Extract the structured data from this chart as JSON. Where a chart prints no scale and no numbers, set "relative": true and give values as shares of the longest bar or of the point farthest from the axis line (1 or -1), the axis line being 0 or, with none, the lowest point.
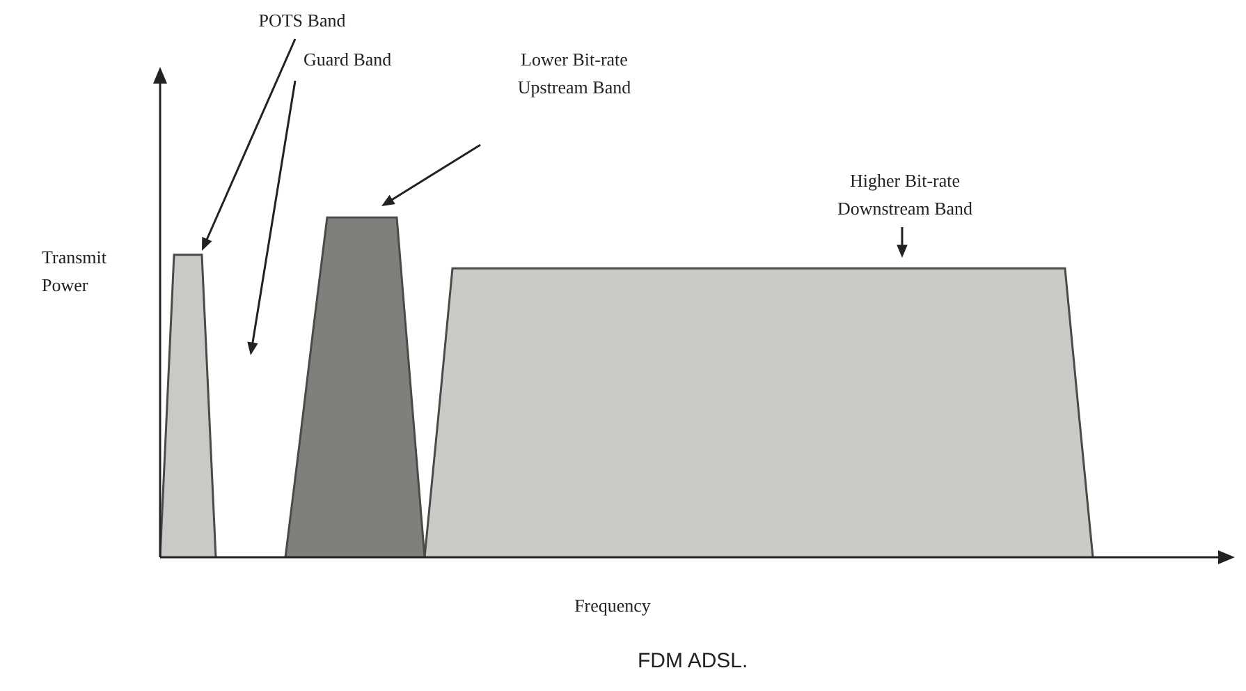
{
  "chart_data": {
    "type": "area",
    "relative": true,
    "marker": "none",
    "xlabel": "Frequency",
    "ylabel": "Transmit Power",
    "categories": [
      null,
      null,
      null,
      null,
      null,
      null,
      null,
      null,
      null,
      null,
      null,
      null,
      null,
      null,
      null,
      null,
      null,
      null,
      null,
      null,
      null,
      null,
      null,
      null,
      null,
      null,
      null,
      null,
      null,
      null,
      null,
      null,
      null,
      null,
      null,
      null,
      null,
      null,
      null,
      null,
      null,
      null,
      null,
      null,
      null,
      null,
      null,
      null,
      null,
      null,
      null,
      null,
      null,
      null,
      null,
      null,
      null,
      null,
      null,
      null,
      null,
      null,
      null,
      null,
      null,
      null,
      null,
      null,
      null,
      null,
      null,
      null,
      null,
      null,
      null
    ],
    "series": [
      {
        "color": "#c8cac5",
        "values": [
          0,
          0.89,
          0.89,
          0.89,
          0,
          null,
          null,
          null,
          null,
          null,
          null,
          null,
          null,
          null,
          null,
          null,
          null,
          null,
          null,
          null,
          null,
          null,
          null,
          null,
          null,
          null,
          null,
          null,
          null,
          null,
          null,
          null,
          null,
          null,
          null,
          null,
          null,
          null,
          null,
          null,
          null,
          null,
          null,
          null,
          null,
          null,
          null,
          null,
          null,
          null,
          null,
          null,
          null,
          null,
          null,
          null,
          null,
          null,
          null,
          null,
          null,
          null,
          null,
          null,
          null,
          null,
          null,
          null,
          null,
          null,
          null,
          null,
          null,
          null,
          null
        ]
      },
      {
        "color": "#7e807c",
        "values": [
          null,
          null,
          null,
          null,
          null,
          null,
          null,
          null,
          null,
          0,
          0.33,
          0.67,
          1,
          1,
          1,
          1,
          1,
          1,
          0.5,
          0,
          null,
          null,
          null,
          null,
          null,
          null,
          null,
          null,
          null,
          null,
          null,
          null,
          null,
          null,
          null,
          null,
          null,
          null,
          null,
          null,
          null,
          null,
          null,
          null,
          null,
          null,
          null,
          null,
          null,
          null,
          null,
          null,
          null,
          null,
          null,
          null,
          null,
          null,
          null,
          null,
          null,
          null,
          null,
          null,
          null,
          null,
          null,
          null,
          null,
          null,
          null,
          null,
          null,
          null,
          null
        ]
      },
      {
        "color": "#cacbc6",
        "values": [
          null,
          null,
          null,
          null,
          null,
          null,
          null,
          null,
          null,
          null,
          null,
          null,
          null,
          null,
          null,
          null,
          null,
          null,
          null,
          0,
          0.42,
          0.85,
          0.85,
          0.85,
          0.85,
          0.85,
          0.85,
          0.85,
          0.85,
          0.85,
          0.85,
          0.85,
          0.85,
          0.85,
          0.85,
          0.85,
          0.85,
          0.85,
          0.85,
          0.85,
          0.85,
          0.85,
          0.85,
          0.85,
          0.85,
          0.85,
          0.85,
          0.85,
          0.85,
          0.85,
          0.85,
          0.85,
          0.85,
          0.85,
          0.85,
          0.85,
          0.85,
          0.85,
          0.85,
          0.85,
          0.85,
          0.85,
          0.85,
          0.85,
          0.85,
          0.85,
          0.42,
          0,
          null,
          null,
          null,
          null,
          null,
          null,
          null
        ]
      }
    ],
    "annotations": [
      "POTS Band",
      "Guard Band",
      "Lower Bit-rate Upstream Band",
      "Higher Bit-rate Downstream Band",
      "FDM ADSL."
    ]
  }
}
